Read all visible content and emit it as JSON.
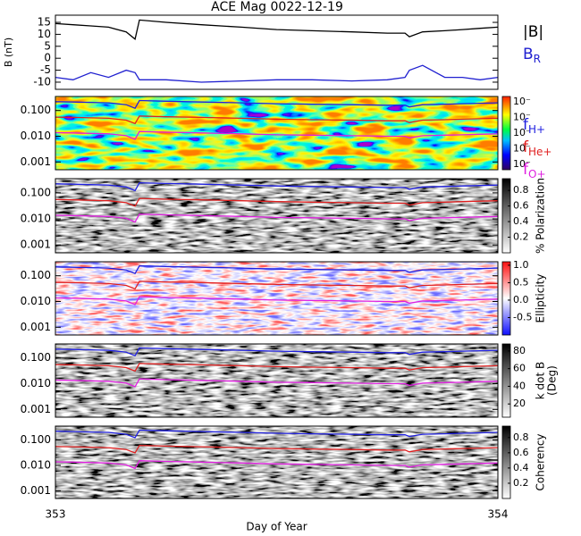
{
  "chart_data": [
    {
      "type": "line",
      "title": "ACE Mag 0022-12-19",
      "ylabel": "B (nT)",
      "x": [
        353,
        353.04,
        353.08,
        353.12,
        353.16,
        353.18,
        353.19,
        353.25,
        353.33,
        353.42,
        353.5,
        353.58,
        353.67,
        353.75,
        353.79,
        353.8,
        353.83,
        353.88,
        353.92,
        353.96,
        354
      ],
      "xlim": [
        353,
        354
      ],
      "xticks": [
        353,
        354
      ],
      "ylim": [
        -13,
        18
      ],
      "yticks": [
        15,
        10,
        5,
        0,
        -5,
        -10
      ],
      "series": [
        {
          "name": "|B|",
          "color": "#000000",
          "values": [
            14.5,
            14,
            13.5,
            13,
            11,
            8,
            16,
            15,
            14,
            13,
            12,
            11.5,
            11,
            10.5,
            10.5,
            9,
            11,
            11.5,
            12,
            12.5,
            13
          ]
        },
        {
          "name": "B",
          "subscript": "R",
          "color": "#2020d0",
          "values": [
            -8,
            -9,
            -6,
            -8,
            -5,
            -6,
            -9,
            -9,
            -10,
            -9.5,
            -9,
            -9,
            -9.5,
            -9,
            -8,
            -5,
            -3,
            -8,
            -8,
            -9,
            -8
          ]
        }
      ]
    },
    {
      "type": "spectrogram",
      "colormap": "rainbow",
      "yscale": "log",
      "x": [
        353,
        353.04,
        353.08,
        353.12,
        353.16,
        353.18,
        353.19,
        353.25,
        353.33,
        353.42,
        353.5,
        353.58,
        353.67,
        353.75,
        353.79,
        353.8,
        353.83,
        353.88,
        353.92,
        353.96,
        354
      ],
      "xlim": [
        353,
        354
      ],
      "xticks": [
        353,
        354
      ],
      "ylim": [
        0.0005,
        0.35
      ],
      "yticks": [
        {
          "value": 0.1,
          "label": "0.100"
        },
        {
          "value": 0.01,
          "label": "0.010"
        },
        {
          "value": 0.001,
          "label": "0.001"
        }
      ],
      "colorbar_ticks": [
        "10⁻",
        "10⁻",
        "10⁻",
        "10⁻",
        "10⁻"
      ],
      "series": [
        {
          "name": "f",
          "subscript": "H+",
          "color": "#2020e0",
          "values": [
            0.221,
            0.214,
            0.206,
            0.198,
            0.168,
            0.122,
            0.244,
            0.229,
            0.214,
            0.198,
            0.183,
            0.175,
            0.168,
            0.16,
            0.16,
            0.137,
            0.168,
            0.175,
            0.183,
            0.191,
            0.198
          ]
        },
        {
          "name": "f",
          "subscript": "He+",
          "color": "#e02020",
          "values": [
            0.055,
            0.054,
            0.052,
            0.05,
            0.042,
            0.031,
            0.061,
            0.057,
            0.054,
            0.05,
            0.046,
            0.044,
            0.042,
            0.04,
            0.04,
            0.034,
            0.042,
            0.044,
            0.046,
            0.048,
            0.05
          ]
        },
        {
          "name": "f",
          "subscript": "O+",
          "color": "#e020e0",
          "values": [
            0.0138,
            0.0134,
            0.0129,
            0.0124,
            0.0105,
            0.0076,
            0.0153,
            0.0143,
            0.0134,
            0.0124,
            0.0114,
            0.011,
            0.0105,
            0.01,
            0.01,
            0.0086,
            0.0105,
            0.011,
            0.0114,
            0.0119,
            0.0124
          ]
        }
      ]
    },
    {
      "type": "spectrogram",
      "colormap": "gray",
      "yscale": "log",
      "xlim": [
        353,
        354
      ],
      "xticks": [
        353,
        354
      ],
      "ylim": [
        0.0005,
        0.35
      ],
      "yticks": [
        {
          "value": 0.1,
          "label": "0.100"
        },
        {
          "value": 0.01,
          "label": "0.010"
        },
        {
          "value": 0.001,
          "label": "0.001"
        }
      ],
      "clim": [
        0,
        0.95
      ],
      "colorbar_ticks": [
        0.2,
        0.4,
        0.6,
        0.8
      ],
      "colorbar_label": [
        "% Polarization"
      ]
    },
    {
      "type": "spectrogram",
      "colormap": "bwr",
      "yscale": "log",
      "xlim": [
        353,
        354
      ],
      "xticks": [
        353,
        354
      ],
      "ylim": [
        0.0005,
        0.35
      ],
      "yticks": [
        {
          "value": 0.1,
          "label": "0.100"
        },
        {
          "value": 0.01,
          "label": "0.010"
        },
        {
          "value": 0.001,
          "label": "0.001"
        }
      ],
      "clim": [
        -1,
        1.1
      ],
      "colorbar_ticks": [
        {
          "value": 1,
          "label": "1.0"
        },
        0.5,
        {
          "value": 0,
          "label": "0.0"
        },
        -0.5
      ],
      "colorbar_label": [
        "Ellipticity"
      ]
    },
    {
      "type": "spectrogram",
      "colormap": "gray",
      "yscale": "log",
      "xlim": [
        353,
        354
      ],
      "xticks": [
        353,
        354
      ],
      "ylim": [
        0.0005,
        0.35
      ],
      "yticks": [
        {
          "value": 0.1,
          "label": "0.100"
        },
        {
          "value": 0.01,
          "label": "0.010"
        },
        {
          "value": 0.001,
          "label": "0.001"
        }
      ],
      "clim": [
        5,
        88
      ],
      "colorbar_ticks": [
        80,
        60,
        40,
        20
      ],
      "colorbar_label": [
        "k dot B",
        "(Deg)"
      ]
    },
    {
      "type": "spectrogram",
      "colormap": "gray",
      "yscale": "log",
      "xlim": [
        353,
        354
      ],
      "xticks": [
        353,
        354
      ],
      "ylim": [
        0.0005,
        0.35
      ],
      "yticks": [
        {
          "value": 0.1,
          "label": "0.100"
        },
        {
          "value": 0.01,
          "label": "0.010"
        },
        {
          "value": 0.001,
          "label": "0.001"
        }
      ],
      "clim": [
        0,
        0.95
      ],
      "colorbar_ticks": [
        0.8,
        0.6,
        0.4,
        0.2
      ],
      "colorbar_label": [
        "Coherency"
      ],
      "xlabel": "Day of Year"
    }
  ]
}
